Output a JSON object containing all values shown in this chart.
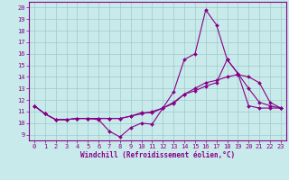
{
  "xlabel": "Windchill (Refroidissement éolien,°C)",
  "xlim": [
    -0.5,
    23.5
  ],
  "ylim": [
    8.5,
    20.5
  ],
  "yticks": [
    9,
    10,
    11,
    12,
    13,
    14,
    15,
    16,
    17,
    18,
    19,
    20
  ],
  "xticks": [
    0,
    1,
    2,
    3,
    4,
    5,
    6,
    7,
    8,
    9,
    10,
    11,
    12,
    13,
    14,
    15,
    16,
    17,
    18,
    19,
    20,
    21,
    22,
    23
  ],
  "bg_color": "#c8eaea",
  "line_color": "#880088",
  "grid_color": "#9fc9c9",
  "line1_y": [
    11.5,
    10.8,
    10.3,
    10.3,
    10.4,
    10.4,
    10.3,
    9.3,
    8.8,
    9.6,
    10.0,
    9.9,
    11.3,
    12.7,
    15.5,
    16.0,
    19.8,
    18.5,
    15.5,
    14.3,
    13.0,
    11.8,
    11.5,
    11.3
  ],
  "line2_y": [
    11.5,
    10.8,
    10.3,
    10.3,
    10.4,
    10.4,
    10.4,
    10.4,
    10.4,
    10.6,
    10.8,
    11.0,
    11.3,
    11.7,
    12.5,
    13.0,
    13.5,
    13.7,
    14.0,
    14.2,
    14.0,
    13.5,
    11.8,
    11.3
  ],
  "line3_y": [
    11.5,
    10.8,
    10.3,
    10.3,
    10.4,
    10.4,
    10.4,
    10.4,
    10.4,
    10.6,
    10.9,
    10.9,
    11.3,
    11.8,
    12.5,
    12.8,
    13.2,
    13.5,
    15.5,
    14.3,
    11.5,
    11.3,
    11.3,
    11.3
  ],
  "tick_fontsize": 5.0,
  "xlabel_fontsize": 5.5,
  "marker_size": 2.0,
  "line_width": 0.8
}
